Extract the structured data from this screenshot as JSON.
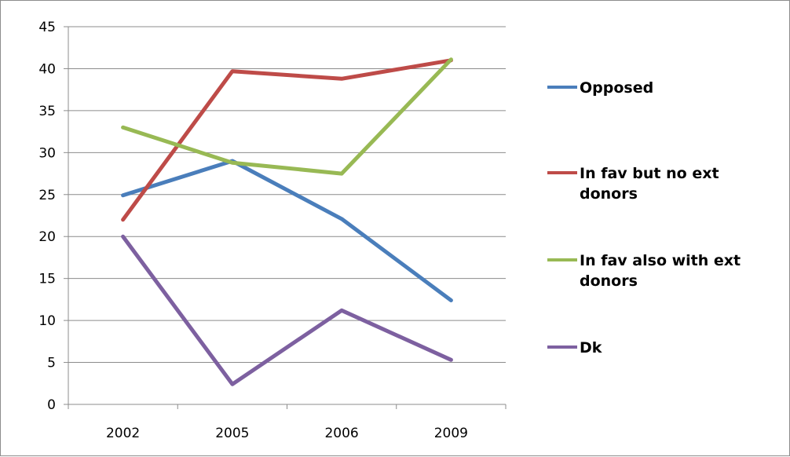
{
  "chart_data": {
    "type": "line",
    "title": "",
    "xlabel": "",
    "ylabel": "",
    "categories": [
      "2002",
      "2005",
      "2006",
      "2009"
    ],
    "ylim": [
      0,
      45
    ],
    "yticks": [
      0,
      5,
      10,
      15,
      20,
      25,
      30,
      35,
      40,
      45
    ],
    "grid": true,
    "legend_position": "right",
    "series": [
      {
        "name": "Opposed",
        "legend_lines": [
          "Opposed"
        ],
        "color": "#4a7ebb",
        "values": [
          24.9,
          29.0,
          22.1,
          12.4
        ]
      },
      {
        "name": "In fav but no ext donors",
        "legend_lines": [
          "In fav but no ext",
          "donors"
        ],
        "color": "#be4b48",
        "values": [
          22.0,
          39.7,
          38.8,
          41.0
        ]
      },
      {
        "name": "In fav also with ext donors",
        "legend_lines": [
          "In fav also with ext",
          "donors"
        ],
        "color": "#98b954",
        "values": [
          33.0,
          28.8,
          27.5,
          41.1
        ]
      },
      {
        "name": "Dk",
        "legend_lines": [
          "Dk"
        ],
        "color": "#7d60a0",
        "values": [
          20.0,
          2.4,
          11.2,
          5.3
        ]
      }
    ]
  }
}
